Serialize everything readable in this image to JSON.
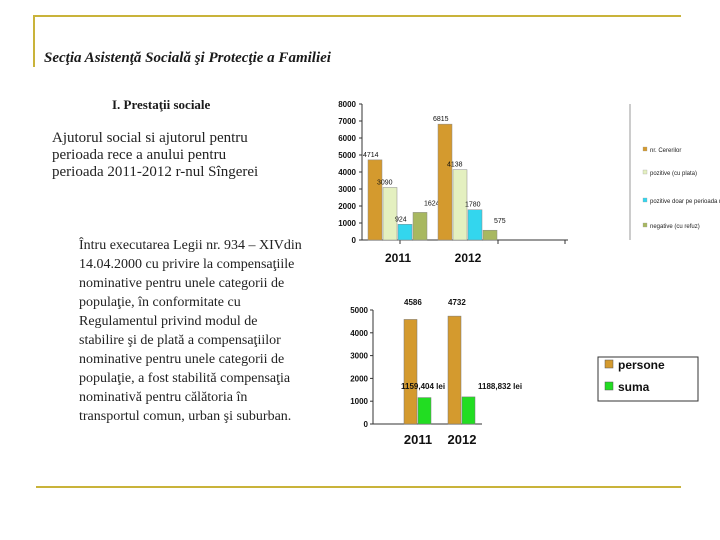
{
  "header": {
    "title": "Secţia Asistenţă Socială şi Protecţie a Familiei",
    "subtitle": "I. Prestaţii sociale"
  },
  "text_block_1": [
    "Ajutorul  social si ajutorul pentru",
    "perioada rece a anului pentru",
    "perioada 2011-2012 r-nul Sîngerei"
  ],
  "text_block_2": [
    "Întru executarea  Legii nr. 934 – XIVdin",
    "14.04.2000  cu privire la compensaţiile",
    "nominative pentru unele  categorii de",
    "populaţie, în conformitate cu",
    "Regulamentul  privind modul de",
    "stabilire şi de plată  a compensaţiilor",
    "nominative pentru unele categorii de",
    "populaţie, a fost stabilită compensaţia",
    "nominativă   pentru călătoria în",
    "transportul comun, urban şi suburban."
  ],
  "chart_data": [
    {
      "type": "bar",
      "categories": [
        "2011",
        "2012"
      ],
      "ylim": [
        0,
        8000
      ],
      "yticks": [
        "0",
        "1000",
        "2000",
        "3000",
        "4000",
        "5000",
        "6000",
        "7000",
        "8000"
      ],
      "series": [
        {
          "name": "nr. Cererilor",
          "values": [
            4714,
            6815
          ],
          "labels": [
            "4714",
            "6815"
          ],
          "color": "#d49a2e"
        },
        {
          "name": "pozitive (cu plata)",
          "values": [
            3090,
            4138
          ],
          "labels": [
            "3090",
            "4138"
          ],
          "color": "#e4f0c0"
        },
        {
          "name": "pozitive doar pe perioada rece a anului",
          "values": [
            924,
            1780
          ],
          "labels": [
            "924",
            "1780"
          ],
          "color": "#33d6ee"
        },
        {
          "name": "negative (cu refuz)",
          "values": [
            1624,
            575
          ],
          "labels": [
            "1624",
            "575"
          ],
          "color": "#a8b860"
        }
      ],
      "legend": [
        "nr. Cererilor",
        "pozitive (cu plata)",
        "pozitive doar pe perioada rece a anului",
        "negative (cu refuz)"
      ]
    },
    {
      "type": "bar",
      "categories": [
        "2011",
        "2012"
      ],
      "ylim": [
        0,
        5000
      ],
      "yticks": [
        "0",
        "1000",
        "2000",
        "3000",
        "4000",
        "5000"
      ],
      "series": [
        {
          "name": "persone",
          "values": [
            4586,
            4732
          ],
          "labels": [
            "4586",
            "4732"
          ],
          "color": "#d49a2e"
        },
        {
          "name": "suma",
          "values": [
            1159.404,
            1188.832
          ],
          "labels": [
            "1159,404 lei",
            "1188,832 lei"
          ],
          "color": "#22dd22"
        }
      ],
      "legend": [
        "persone",
        "suma"
      ]
    }
  ]
}
